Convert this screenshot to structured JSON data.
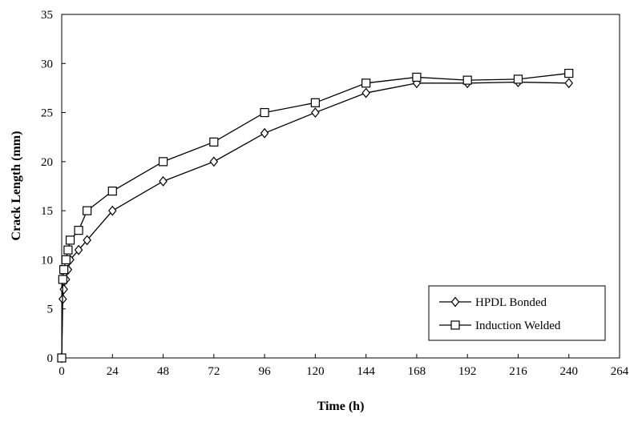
{
  "chart_data": {
    "type": "line",
    "xlabel": "Time (h)",
    "ylabel": "Crack Length (mm)",
    "xlim": [
      0,
      264
    ],
    "ylim": [
      0,
      35
    ],
    "xticks": [
      "0",
      "24",
      "48",
      "72",
      "96",
      "120",
      "144",
      "168",
      "192",
      "216",
      "240",
      "264"
    ],
    "yticks": [
      "0",
      "5",
      "10",
      "15",
      "20",
      "25",
      "30",
      "35"
    ],
    "grid": false,
    "legend_position": "bottom-right",
    "series": [
      {
        "name": "HPDL Bonded",
        "marker": "diamond",
        "x": [
          0,
          0.5,
          1,
          2,
          3,
          4,
          8,
          12,
          24,
          48,
          72,
          96,
          120,
          144,
          168,
          192,
          216,
          240
        ],
        "y": [
          0,
          6,
          7,
          8,
          9,
          10,
          11,
          12,
          15,
          18,
          20,
          22.9,
          25,
          27,
          28,
          28,
          28.1,
          28
        ]
      },
      {
        "name": "Induction Welded",
        "marker": "square",
        "x": [
          0,
          0.5,
          1,
          2,
          3,
          4,
          8,
          12,
          24,
          48,
          72,
          96,
          120,
          144,
          168,
          192,
          216,
          240
        ],
        "y": [
          0,
          8,
          9,
          10,
          11,
          12,
          13,
          15,
          17,
          20,
          22,
          25,
          26,
          28,
          28.6,
          28.3,
          28.4,
          29
        ]
      }
    ]
  }
}
